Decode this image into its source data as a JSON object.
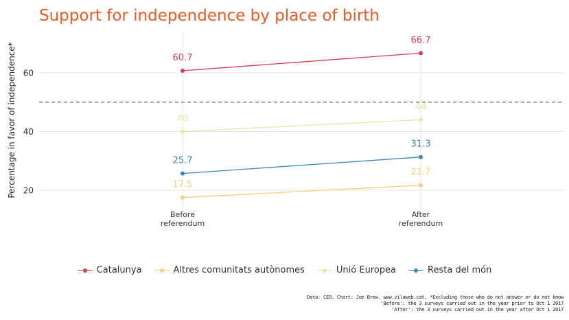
{
  "chart_data": {
    "type": "line",
    "title": "Support for independence by place of birth",
    "ylabel": "Percentage in favor of independence*",
    "xlabel": "",
    "categories": [
      "Before\nreferendum",
      "After\nreferendum"
    ],
    "y_ticks": [
      "20",
      "40",
      "60"
    ],
    "ylim": [
      13,
      74
    ],
    "reference_line": 50,
    "grid": true,
    "legend_position": "bottom",
    "series": [
      {
        "name": "Catalunya",
        "values": [
          60.7,
          66.7
        ],
        "labels": [
          "60.7",
          "66.7"
        ],
        "color": "#d63a4d"
      },
      {
        "name": "Altres comunitats autònomes",
        "values": [
          17.5,
          21.7
        ],
        "labels": [
          "17.5",
          "21.7"
        ],
        "color": "#f9cf7d"
      },
      {
        "name": "Unió Europea",
        "values": [
          40,
          44
        ],
        "labels": [
          "40",
          "44"
        ],
        "color": "#dcefa2"
      },
      {
        "name": "Resta del món",
        "values": [
          25.7,
          31.3
        ],
        "labels": [
          "25.7",
          "31.3"
        ],
        "color": "#3a89b9"
      }
    ],
    "caption": [
      "Data: CEO. Chart: Joe Brew. www.vilaweb.cat. *Excluding those who do not answer or do not know",
      "'Before': the 3 surveys carried out in the year prior to Oct 1 2017",
      "'After': the 3 surveys carried out in the year after Oct 1 2017"
    ],
    "title_color": "#f05a22"
  }
}
